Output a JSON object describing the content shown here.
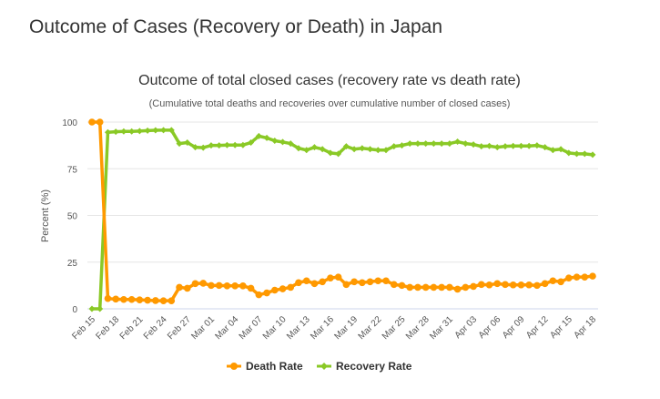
{
  "page_title": "Outcome of Cases (Recovery or Death) in Japan",
  "chart_data": {
    "type": "line",
    "title": "Outcome of total closed cases (recovery rate vs death rate)",
    "subtitle": "(Cumulative total deaths and recoveries over cumulative number of closed cases)",
    "ylabel": "Percent (%)",
    "xlabel": "",
    "ylim": [
      0,
      100
    ],
    "yticks": [
      0,
      25,
      50,
      75,
      100
    ],
    "grid": true,
    "legend_position": "bottom",
    "x_start": "Feb 15",
    "x_tick_labels": [
      "Feb 15",
      "Feb 18",
      "Feb 21",
      "Feb 24",
      "Feb 27",
      "Mar 01",
      "Mar 04",
      "Mar 07",
      "Mar 10",
      "Mar 13",
      "Mar 16",
      "Mar 19",
      "Mar 22",
      "Mar 25",
      "Mar 28",
      "Mar 31",
      "Apr 03",
      "Apr 06",
      "Apr 09",
      "Apr 12",
      "Apr 15",
      "Apr 18"
    ],
    "series": [
      {
        "name": "Death Rate",
        "color": "#FF9900",
        "values": [
          100,
          100,
          5.5,
          5.2,
          5.0,
          5.0,
          4.8,
          4.6,
          4.4,
          4.3,
          4.3,
          11.5,
          11,
          13.5,
          13.7,
          12.5,
          12.5,
          12.3,
          12.3,
          12.3,
          11,
          7.5,
          8.5,
          10,
          10.7,
          11.5,
          14,
          15,
          13.5,
          14.5,
          16.5,
          17,
          13,
          14.5,
          14,
          14.5,
          15,
          15,
          13,
          12.5,
          11.5,
          11.5,
          11.5,
          11.5,
          11.5,
          11.5,
          10.5,
          11.5,
          12,
          13,
          12.8,
          13.5,
          13,
          12.8,
          12.8,
          12.8,
          12.5,
          13.5,
          15,
          14.5,
          16.5,
          17,
          17,
          17.5
        ]
      },
      {
        "name": "Recovery Rate",
        "color": "#8AC926",
        "values": [
          0,
          0,
          94.5,
          94.8,
          95.0,
          95.0,
          95.2,
          95.4,
          95.6,
          95.7,
          95.7,
          88.5,
          89,
          86.5,
          86.3,
          87.5,
          87.5,
          87.7,
          87.7,
          87.7,
          89,
          92.5,
          91.5,
          90,
          89.3,
          88.5,
          86,
          85,
          86.5,
          85.5,
          83.5,
          83,
          87,
          85.5,
          86,
          85.5,
          85,
          85,
          87,
          87.5,
          88.5,
          88.5,
          88.5,
          88.5,
          88.5,
          88.5,
          89.5,
          88.5,
          88,
          87,
          87.2,
          86.5,
          87,
          87.2,
          87.2,
          87.2,
          87.5,
          86.5,
          85,
          85.5,
          83.5,
          83,
          83,
          82.5
        ]
      }
    ]
  }
}
